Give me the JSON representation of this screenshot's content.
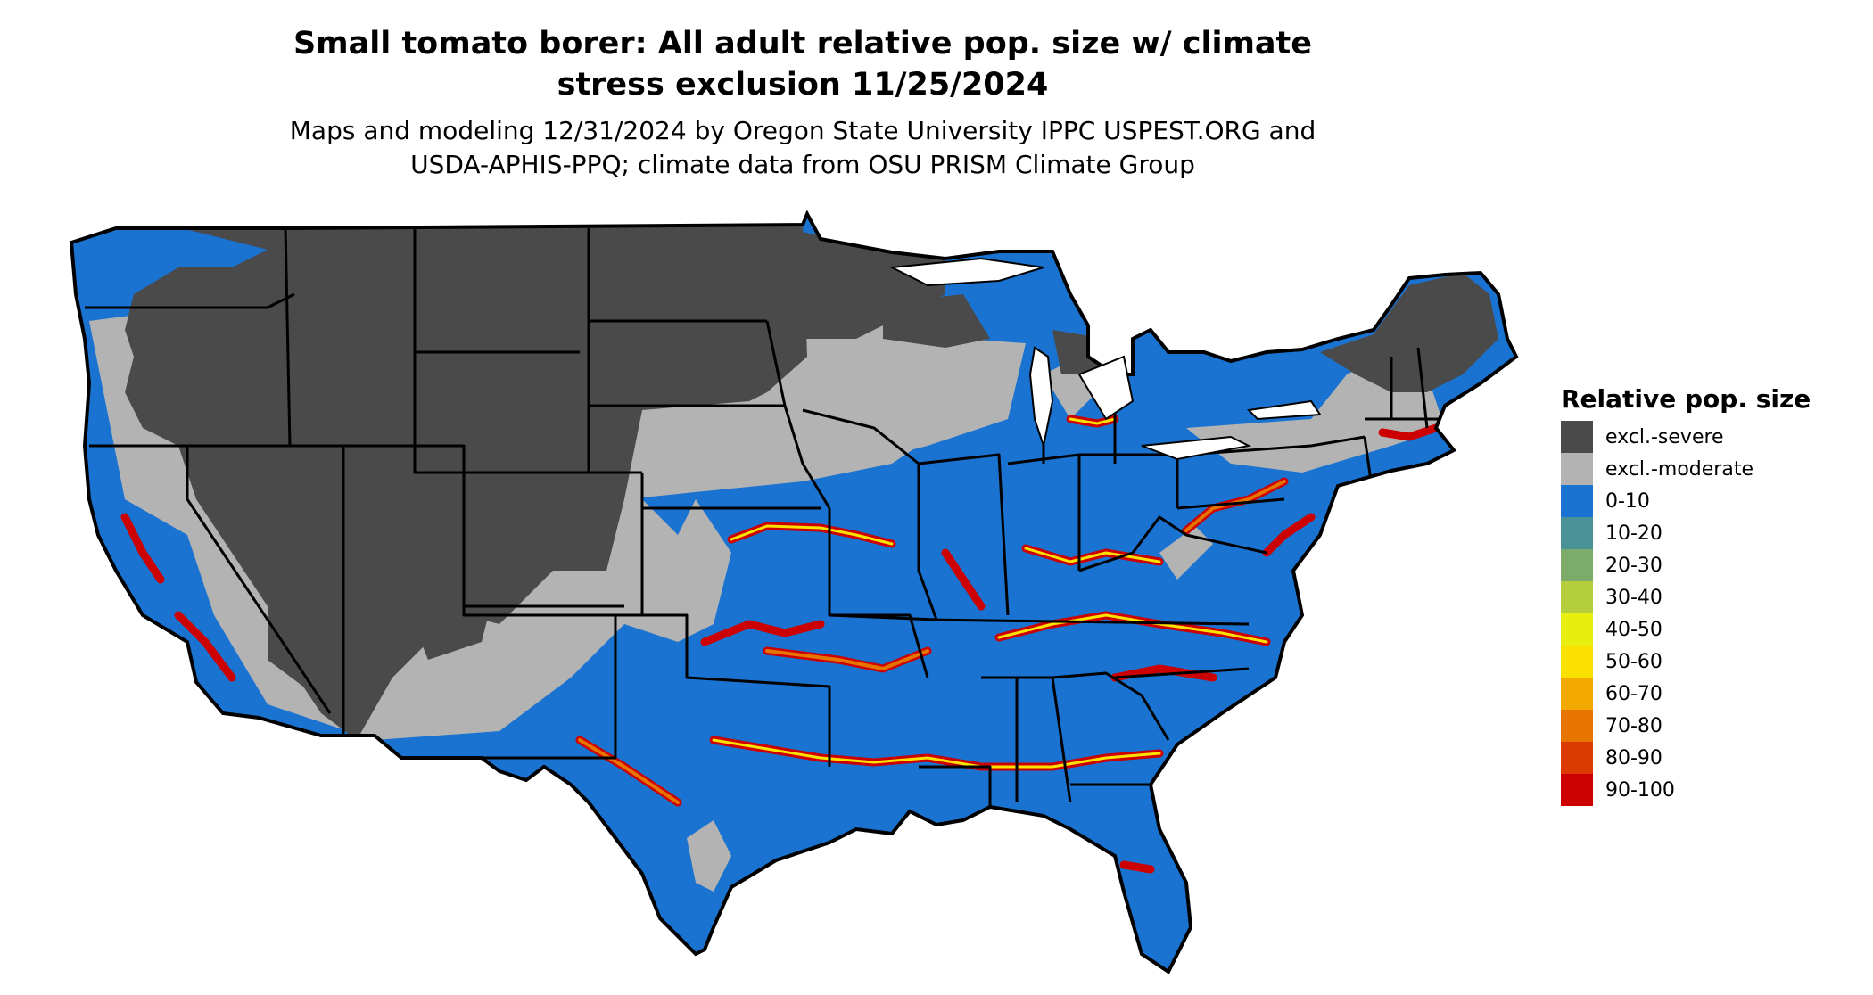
{
  "title_line1": "Small tomato borer: All adult relative pop. size w/ climate",
  "title_line2": "stress exclusion 11/25/2024",
  "subtitle_line1": "Maps and modeling 12/31/2024 by Oregon State University IPPC USPEST.ORG and",
  "subtitle_line2": "USDA-APHIS-PPQ; climate data from OSU PRISM Climate Group",
  "legend": {
    "title": "Relative pop. size",
    "items": [
      {
        "label": "excl.-severe",
        "color": "#4a4a4a"
      },
      {
        "label": "excl.-moderate",
        "color": "#b3b3b3"
      },
      {
        "label": "0-10",
        "color": "#1a73d0"
      },
      {
        "label": "10-20",
        "color": "#4a9198"
      },
      {
        "label": "20-30",
        "color": "#7dab6a"
      },
      {
        "label": "30-40",
        "color": "#b5cf3c"
      },
      {
        "label": "40-50",
        "color": "#e8ef10"
      },
      {
        "label": "50-60",
        "color": "#fbe100"
      },
      {
        "label": "60-70",
        "color": "#f2aa00"
      },
      {
        "label": "70-80",
        "color": "#e87400"
      },
      {
        "label": "80-90",
        "color": "#db3a00"
      },
      {
        "label": "90-100",
        "color": "#cc0000"
      }
    ]
  }
}
